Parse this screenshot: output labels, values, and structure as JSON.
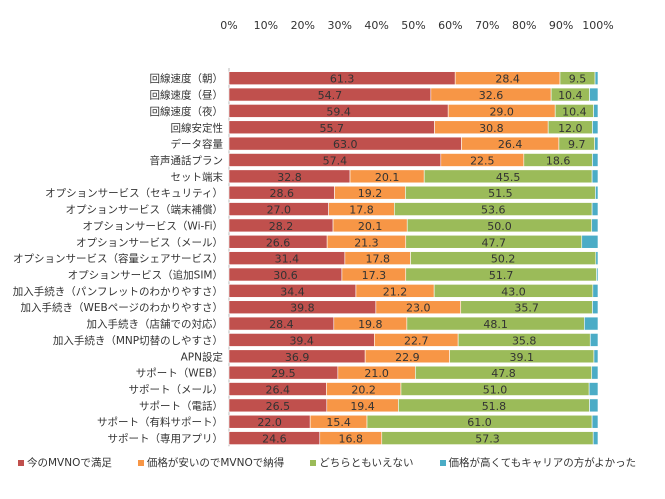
{
  "chart_data": {
    "type": "bar",
    "orientation": "horizontal",
    "stacked": "100%",
    "xlim": [
      0,
      100
    ],
    "x_ticks": [
      "0%",
      "10%",
      "20%",
      "30%",
      "40%",
      "50%",
      "60%",
      "70%",
      "80%",
      "90%",
      "100%"
    ],
    "x_axis_position": "top",
    "grid": false,
    "legend_position": "bottom",
    "categories": [
      "回線速度（朝）",
      "回線速度（昼）",
      "回線速度（夜）",
      "回線安定性",
      "データ容量",
      "音声通話プラン",
      "セット端末",
      "オプションサービス（セキュリティ）",
      "オプションサービス（端末補償）",
      "オプションサービス（Wi-Fi）",
      "オプションサービス（メール）",
      "オプションサービス（容量シェアサービス）",
      "オプションサービス（追加SIM）",
      "加入手続き（パンフレットのわかりやすさ）",
      "加入手続き（WEBページのわかりやすさ）",
      "加入手続き（店舗での対応）",
      "加入手続き（MNP切替のしやすさ）",
      "APN設定",
      "サポート（WEB）",
      "サポート（メール）",
      "サポート（電話）",
      "サポート（有料サポート）",
      "サポート（専用アプリ）"
    ],
    "series": [
      {
        "name": "今のMVNOで満足",
        "color": "#c0504d",
        "values": [
          61.3,
          54.7,
          59.4,
          55.7,
          63.0,
          57.4,
          32.8,
          28.6,
          27.0,
          28.2,
          26.6,
          31.4,
          30.6,
          34.4,
          39.8,
          28.4,
          39.4,
          36.9,
          29.5,
          26.4,
          26.5,
          22.0,
          24.6
        ],
        "labels": [
          "61.3",
          "54.7",
          "59.4",
          "55.7",
          "63.0",
          "57.4",
          "32.8",
          "28.6",
          "27.0",
          "28.2",
          "26.6",
          "31.4",
          "30.6",
          "34.4",
          "39.8",
          "28.4",
          "39.4",
          "36.9",
          "29.5",
          "26.4",
          "26.5",
          "22.0",
          "24.6"
        ]
      },
      {
        "name": "価格が安いのでMVNOで納得",
        "color": "#f79646",
        "values": [
          28.4,
          32.6,
          29.0,
          30.8,
          26.4,
          22.5,
          20.1,
          19.2,
          17.8,
          20.1,
          21.3,
          17.8,
          17.3,
          21.2,
          23.0,
          19.8,
          22.7,
          22.9,
          21.0,
          20.2,
          19.4,
          15.4,
          16.8
        ],
        "labels": [
          "28.4",
          "32.6",
          "29.0",
          "30.8",
          "26.4",
          "22.5",
          "20.1",
          "19.2",
          "17.8",
          "20.1",
          "21.3",
          "17.8",
          "17.3",
          "21.2",
          "23.0",
          "19.8",
          "22.7",
          "22.9",
          "21.0",
          "20.2",
          "19.4",
          "15.4",
          "16.8"
        ]
      },
      {
        "name": "どちらともいえない",
        "color": "#9bbb59",
        "values": [
          9.5,
          10.4,
          10.4,
          12.0,
          9.7,
          18.6,
          45.5,
          51.5,
          53.6,
          50.0,
          47.7,
          50.2,
          51.7,
          43.0,
          35.7,
          48.1,
          35.8,
          39.1,
          47.8,
          51.0,
          51.8,
          61.0,
          57.3
        ],
        "labels": [
          "9.5",
          "10.4",
          "10.4",
          "12.0",
          "9.7",
          "18.6",
          "45.5",
          "51.5",
          "53.6",
          "50.0",
          "47.7",
          "50.2",
          "51.7",
          "43.0",
          "35.7",
          "48.1",
          "35.8",
          "39.1",
          "47.8",
          "51.0",
          "51.8",
          "61.0",
          "57.3"
        ]
      },
      {
        "name": "価格が高くてもキャリアの方がよかった",
        "color": "#4bacc6",
        "values": [
          0.8,
          2.3,
          1.2,
          1.5,
          0.9,
          1.5,
          1.6,
          0.7,
          1.6,
          1.7,
          4.4,
          0.6,
          0.4,
          1.4,
          1.5,
          3.7,
          2.1,
          1.1,
          1.7,
          2.4,
          2.3,
          1.6,
          1.3
        ]
      }
    ]
  }
}
